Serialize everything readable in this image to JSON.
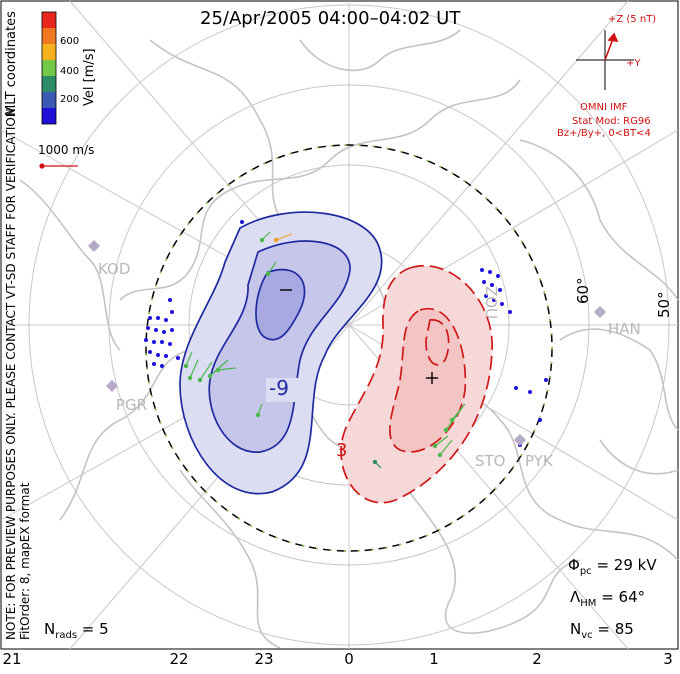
{
  "title": "25/Apr/2005 04:00–04:02 UT",
  "colorbar": {
    "ticks": [
      "600",
      "400",
      "200"
    ],
    "label": "Vel [m/s]",
    "colors": [
      "#e8281e",
      "#f07820",
      "#f5b21e",
      "#74c848",
      "#2d8c68",
      "#3a5ab4",
      "#1e10d8"
    ]
  },
  "side_labels": {
    "coords": "MLT coordinates",
    "note": "NOTE: FOR PREVIEW PURPOSES ONLY. PLEASE CONTACT VT-SD STAFF FOR VERIFICATION.",
    "fit": "FitOrder: 8, mapEX format"
  },
  "scale_vector": "1000 m/s",
  "imf": {
    "z_label": "+Z (5 nT)",
    "y_label": "+Y",
    "source": "OMNI IMF",
    "model": "Stat Mod: RG96",
    "condition": "Bz+/By+, 0<BT<4"
  },
  "stations": [
    "KOD",
    "PGR",
    "STO",
    "PYK",
    "HAN",
    "ZOU"
  ],
  "latitudes": [
    "60°",
    "50°"
  ],
  "contour_labels": [
    "-9",
    "3"
  ],
  "stats": {
    "phi_pc": "Φ",
    "phi_sub": "pc",
    "phi_val": " = 29 kV",
    "lambda": "Λ",
    "lambda_sub": "HM",
    "lambda_val": " = 64°",
    "nvc": "N",
    "nvc_sub": "vc",
    "nvc_val": " = 85",
    "nrads": "N",
    "nrads_sub": "rads",
    "nrads_val": " = 5"
  },
  "mlt_axis": [
    "21",
    "22",
    "23",
    "0",
    "1",
    "2",
    "3"
  ]
}
